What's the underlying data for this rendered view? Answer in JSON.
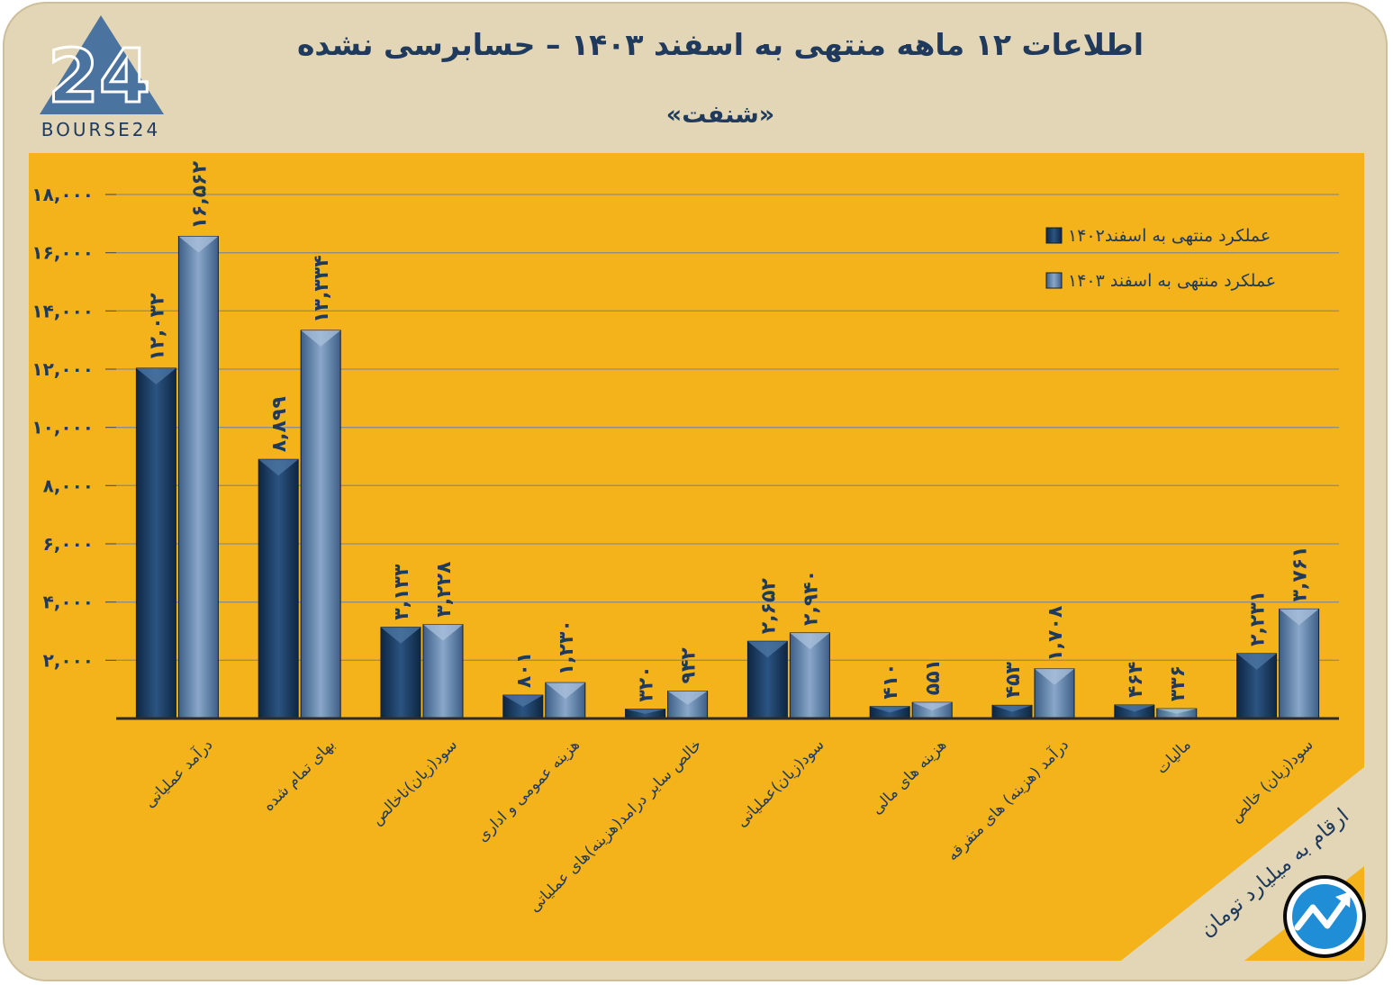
{
  "header": {
    "title": "اطلاعات ۱۲ ماهه منتهی به اسفند ۱۴۰۳ – حسابرسی نشده",
    "subtitle": "«شنفت»",
    "logo_text": "BOURSE24",
    "logo_mark": "24"
  },
  "footnote": "ارقام به میلیارد تومان",
  "colors": {
    "series_2023": "#1d3c62",
    "series_2024": "#5a7ea8",
    "panel": "#f4b21b",
    "frame": "#e2d6b6",
    "text": "#1f3a5c"
  },
  "chart_data": {
    "type": "bar",
    "categories": [
      "درآمد عملیاتی",
      "بهای تمام شده",
      "سود(زیان)ناخالص",
      "هزینه عمومی و اداری",
      "خالص سایر درامد(هزینه)های عملیاتی",
      "سود(زیان)عملیاتی",
      "هزینه های مالی",
      "درآمد (هزینه) های متفرقه",
      "مالیات",
      "سود(زیان) خالص"
    ],
    "series": [
      {
        "name": "عملکرد منتهی به اسفند۱۴۰۲",
        "values": [
          12032,
          8899,
          3133,
          801,
          320,
          2652,
          410,
          453,
          464,
          2231
        ],
        "labels": [
          "۱۲,۰۳۲",
          "۸,۸۹۹",
          "۳,۱۳۳",
          "۸۰۱",
          "۳۲۰",
          "۲,۶۵۲",
          "۴۱۰",
          "۴۵۳",
          "۴۶۴",
          "۲,۲۳۱"
        ]
      },
      {
        "name": "عملکرد منتهی به اسفند ۱۴۰۳",
        "values": [
          16562,
          13334,
          3228,
          1230,
          942,
          2940,
          551,
          1708,
          336,
          3761
        ],
        "labels": [
          "۱۶,۵۶۲",
          "۱۳,۳۳۴",
          "۳,۲۲۸",
          "۱,۲۳۰",
          "۹۴۲",
          "۲,۹۴۰",
          "۵۵۱",
          "۱,۷۰۸",
          "۳۳۶",
          "۳,۷۶۱"
        ]
      }
    ],
    "yticks": [
      2000,
      4000,
      6000,
      8000,
      10000,
      12000,
      14000,
      16000,
      18000
    ],
    "ytick_labels": [
      "۲,۰۰۰",
      "۴,۰۰۰",
      "۶,۰۰۰",
      "۸,۰۰۰",
      "۱۰,۰۰۰",
      "۱۲,۰۰۰",
      "۱۴,۰۰۰",
      "۱۶,۰۰۰",
      "۱۸,۰۰۰"
    ],
    "ylim": [
      0,
      18000
    ],
    "grid": true,
    "legend_position": "top-right"
  }
}
